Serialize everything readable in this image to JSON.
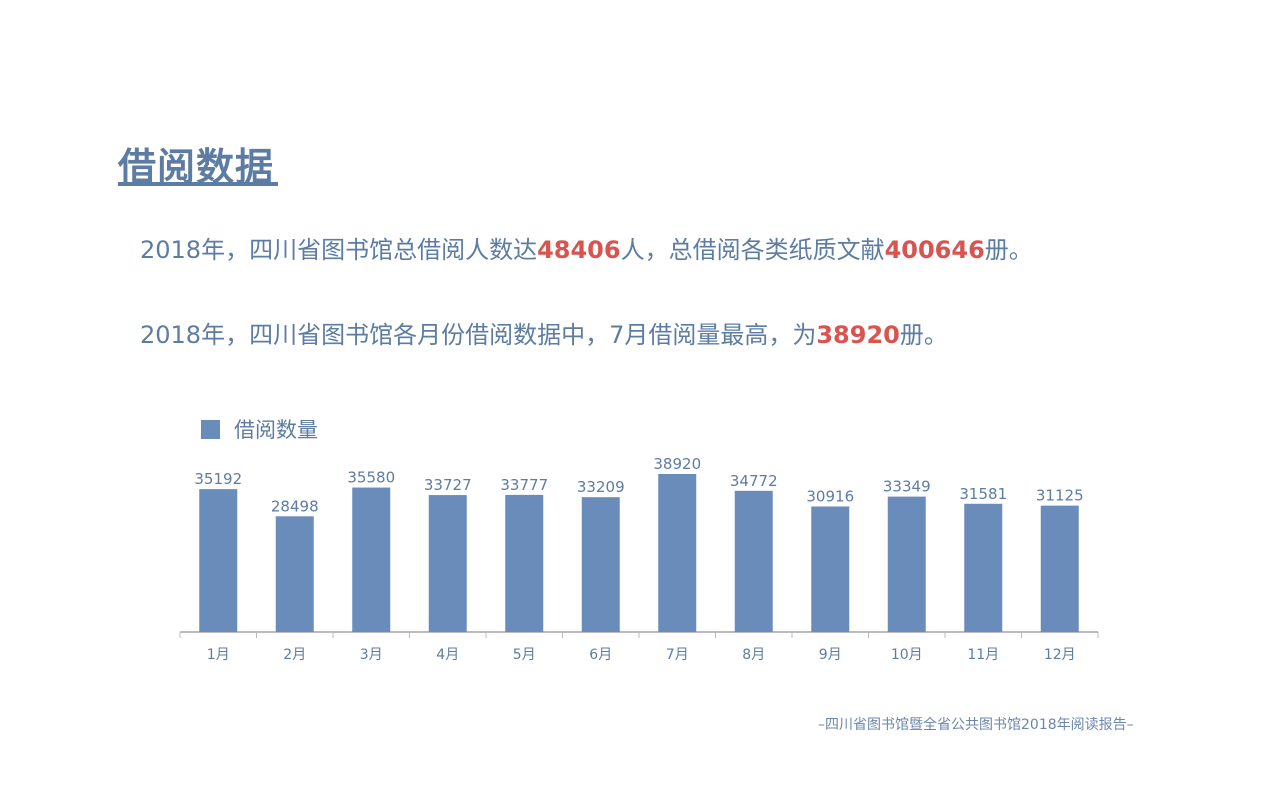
{
  "title": "借阅数据",
  "paragraphs": [
    {
      "pre": "2018年，四川省图书馆总借阅人数达",
      "h1": "48406",
      "mid": "人，总借阅各类纸质文献",
      "h2": "400646",
      "post": "册。"
    },
    {
      "pre": "2018年，四川省图书馆各月份借阅数据中，7月借阅量最高，为",
      "h1": "38920",
      "post": "册。"
    }
  ],
  "footer": "–四川省图书馆暨全省公共图书馆2018年阅读报告–",
  "colors": {
    "text": "#5d7ca3",
    "highlight": "#d9534f",
    "bar": "#6a8cba"
  },
  "chart_data": {
    "type": "bar",
    "legend": [
      "借阅数量"
    ],
    "legend_position": "top-left",
    "categories": [
      "1月",
      "2月",
      "3月",
      "4月",
      "5月",
      "6月",
      "7月",
      "8月",
      "9月",
      "10月",
      "11月",
      "12月"
    ],
    "series": [
      {
        "name": "借阅数量",
        "values": [
          35192,
          28498,
          35580,
          33727,
          33777,
          33209,
          38920,
          34772,
          30916,
          33349,
          31581,
          31125
        ]
      }
    ],
    "ylim": [
      0,
      40000
    ],
    "grid": false,
    "data_labels": true
  }
}
